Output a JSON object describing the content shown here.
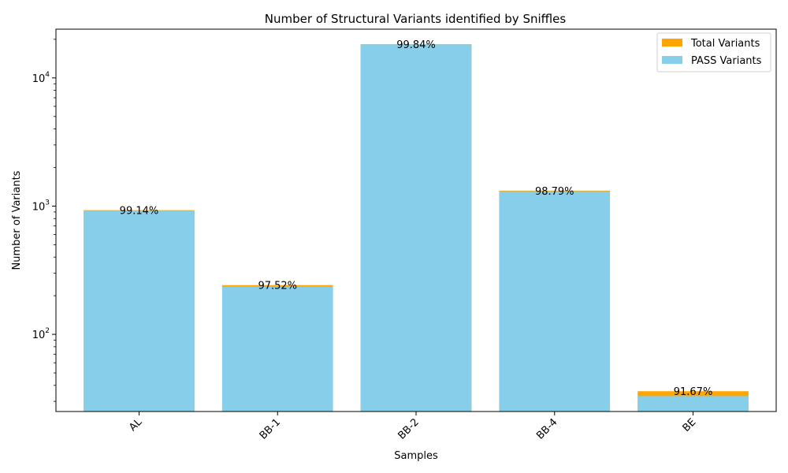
{
  "chart_data": {
    "type": "bar",
    "title": "Number of Structural Variants identified by Sniffles",
    "xlabel": "Samples",
    "ylabel": "Number of Variants",
    "yscale": "log",
    "ylim": [
      25,
      24000
    ],
    "yticks": [
      {
        "value": 100,
        "base": "10",
        "exp": "2"
      },
      {
        "value": 1000,
        "base": "10",
        "exp": "3"
      },
      {
        "value": 10000,
        "base": "10",
        "exp": "4"
      }
    ],
    "categories": [
      "AL",
      "BB-1",
      "BB-2",
      "BB-4",
      "BE"
    ],
    "series": [
      {
        "name": "Total Variants",
        "color": "#FFA500",
        "values": [
          930,
          242,
          18330,
          1320,
          36
        ]
      },
      {
        "name": "PASS Variants",
        "color": "#87CEEB",
        "values": [
          922,
          236,
          18300,
          1304,
          33
        ]
      }
    ],
    "bar_labels": [
      "99.14%",
      "97.52%",
      "99.84%",
      "98.79%",
      "91.67%"
    ],
    "legend_position": "top-right",
    "grid": false
  }
}
